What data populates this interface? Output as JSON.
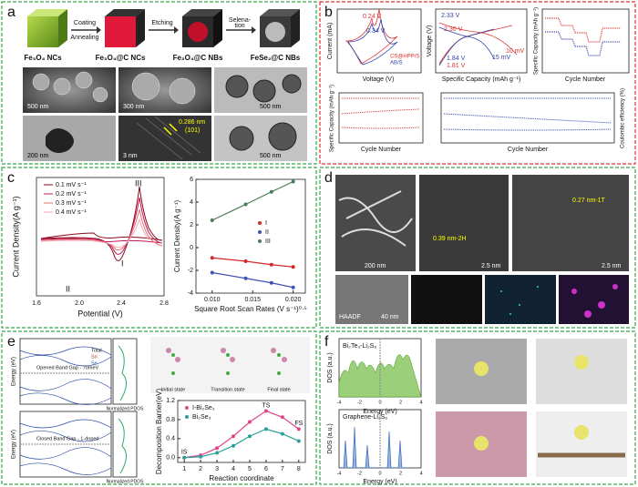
{
  "panels": {
    "a": {
      "label": "a",
      "stages": [
        "Fe₃O₄ NCs",
        "Fe₃O₄@C NCs",
        "Fe₃O₄@C NBs",
        "FeSe₂@C NBs"
      ],
      "arrows": [
        "Coating",
        "Annealing",
        "Etching",
        "Selena-",
        "tion"
      ],
      "scale_bars": [
        "500 nm",
        "300 nm",
        "500 nm",
        "200 nm",
        "3 nm",
        "500 nm"
      ],
      "lattice": "0.286 nm",
      "plane": "(101)"
    },
    "b": {
      "label": "b",
      "legend": [
        "CS@HPP/S",
        "AB/S"
      ],
      "cv": {
        "xlabel": "Voltage (V)",
        "ylabel": "Current (mA)",
        "notes": [
          "0.24 V",
          "0.34 V"
        ]
      },
      "profile": {
        "xlabel": "Specific Capacity (mAh g⁻¹)",
        "ylabel": "Voltage (V)",
        "notes": [
          "2.33 V",
          "2.30 V",
          "1.84 V",
          "1.81 V",
          "15 mV",
          "10 mV"
        ]
      },
      "rate": {
        "xlabel": "Cycle Number",
        "ylabel": "Specific Capacity (mAh g⁻¹)"
      },
      "cycle1": {
        "xlabel": "Cycle Number",
        "ylabel": "Specific Capacity (mAh g⁻¹)"
      },
      "cycle2": {
        "xlabel": "Cycle Number",
        "ylabel": "Coulombic efficiency (%)"
      }
    },
    "c": {
      "label": "c",
      "cv": {
        "legend": [
          "0.1 mV s⁻¹",
          "0.2 mV s⁻¹",
          "0.3 mV s⁻¹",
          "0.4 mV s⁻¹"
        ],
        "peaks": [
          "I",
          "II",
          "III"
        ],
        "xlabel": "Potential (V)",
        "ylabel": "Current Density(A g⁻¹)",
        "xticks": [
          "1.6",
          "2.0",
          "2.4",
          "2.8"
        ]
      },
      "chart": {
        "type": "line",
        "xlabel": "Square Root Scan Rates (V s⁻¹)⁰·⁵",
        "ylabel": "Current Density(A g⁻¹)",
        "x": [
          0.01,
          0.01414,
          0.01732,
          0.02
        ],
        "series": [
          {
            "name": "I",
            "color": "#d62728",
            "values": [
              -0.9,
              -1.2,
              -1.5,
              -1.7
            ]
          },
          {
            "name": "II",
            "color": "#3f51b5",
            "values": [
              -2.2,
              -2.7,
              -3.1,
              -3.5
            ]
          },
          {
            "name": "III",
            "color": "#4a7c59",
            "values": [
              2.4,
              3.8,
              4.9,
              5.8
            ]
          }
        ],
        "xlim": [
          0.008,
          0.0215
        ],
        "ylim": [
          -4,
          6
        ],
        "xticks": [
          {
            "value": 0.01,
            "label": "0.010"
          },
          {
            "value": 0.015,
            "label": "0.015"
          },
          {
            "value": 0.02,
            "label": "0.020"
          }
        ],
        "yticks": [
          -4,
          -2,
          0,
          2,
          4,
          6
        ]
      }
    },
    "d": {
      "label": "d",
      "notes": [
        "200 nm",
        "0.39 nm-2H",
        "2.5 nm",
        "0.27 nm-1T",
        "2.5 nm",
        "HAADF",
        "40 nm"
      ]
    },
    "e": {
      "label": "e",
      "bands": [
        "Opened Band Gap - 70meV",
        "Closed Band Gap - 1-doped"
      ],
      "pdos": "Normalized PDOS",
      "ylabel": "Energy (eV)",
      "legend": [
        "Total",
        "Sn",
        "Se"
      ],
      "states": [
        "Initial state",
        "Transition state",
        "Final state"
      ],
      "chart": {
        "type": "line",
        "xlabel": "Reaction coordinate",
        "ylabel": "Decomposition Barrier(eV)",
        "notes": [
          "IS",
          "TS",
          "FS"
        ],
        "x": [
          1,
          2,
          3,
          4,
          5,
          6,
          7,
          8
        ],
        "series": [
          {
            "name": "I-Bi₂Se₃",
            "color": "#e0458a",
            "values": [
              0,
              0.05,
              0.2,
              0.45,
              0.75,
              0.98,
              0.85,
              0.6
            ]
          },
          {
            "name": "Bi₂Se₃",
            "color": "#2aa198",
            "values": [
              0,
              0.02,
              0.1,
              0.25,
              0.45,
              0.6,
              0.5,
              0.35
            ]
          }
        ],
        "xlim": [
          0.6,
          8.4
        ],
        "ylim": [
          -0.1,
          1.2
        ],
        "xticks": [
          1,
          2,
          3,
          4,
          5,
          6,
          7,
          8
        ],
        "yticks": [
          {
            "value": 0,
            "label": "0.0"
          },
          0.4,
          0.8,
          1.2
        ]
      }
    },
    "f": {
      "label": "f",
      "titles": [
        "Bi₂Te₃-Li₂S₆",
        "Graphene-Li₂S₆"
      ],
      "ylabel": "DOS (a.u.)",
      "xlabel": "Energy (eV)",
      "xticks": [
        "-4",
        "-2",
        "0",
        "2",
        "4"
      ]
    }
  }
}
